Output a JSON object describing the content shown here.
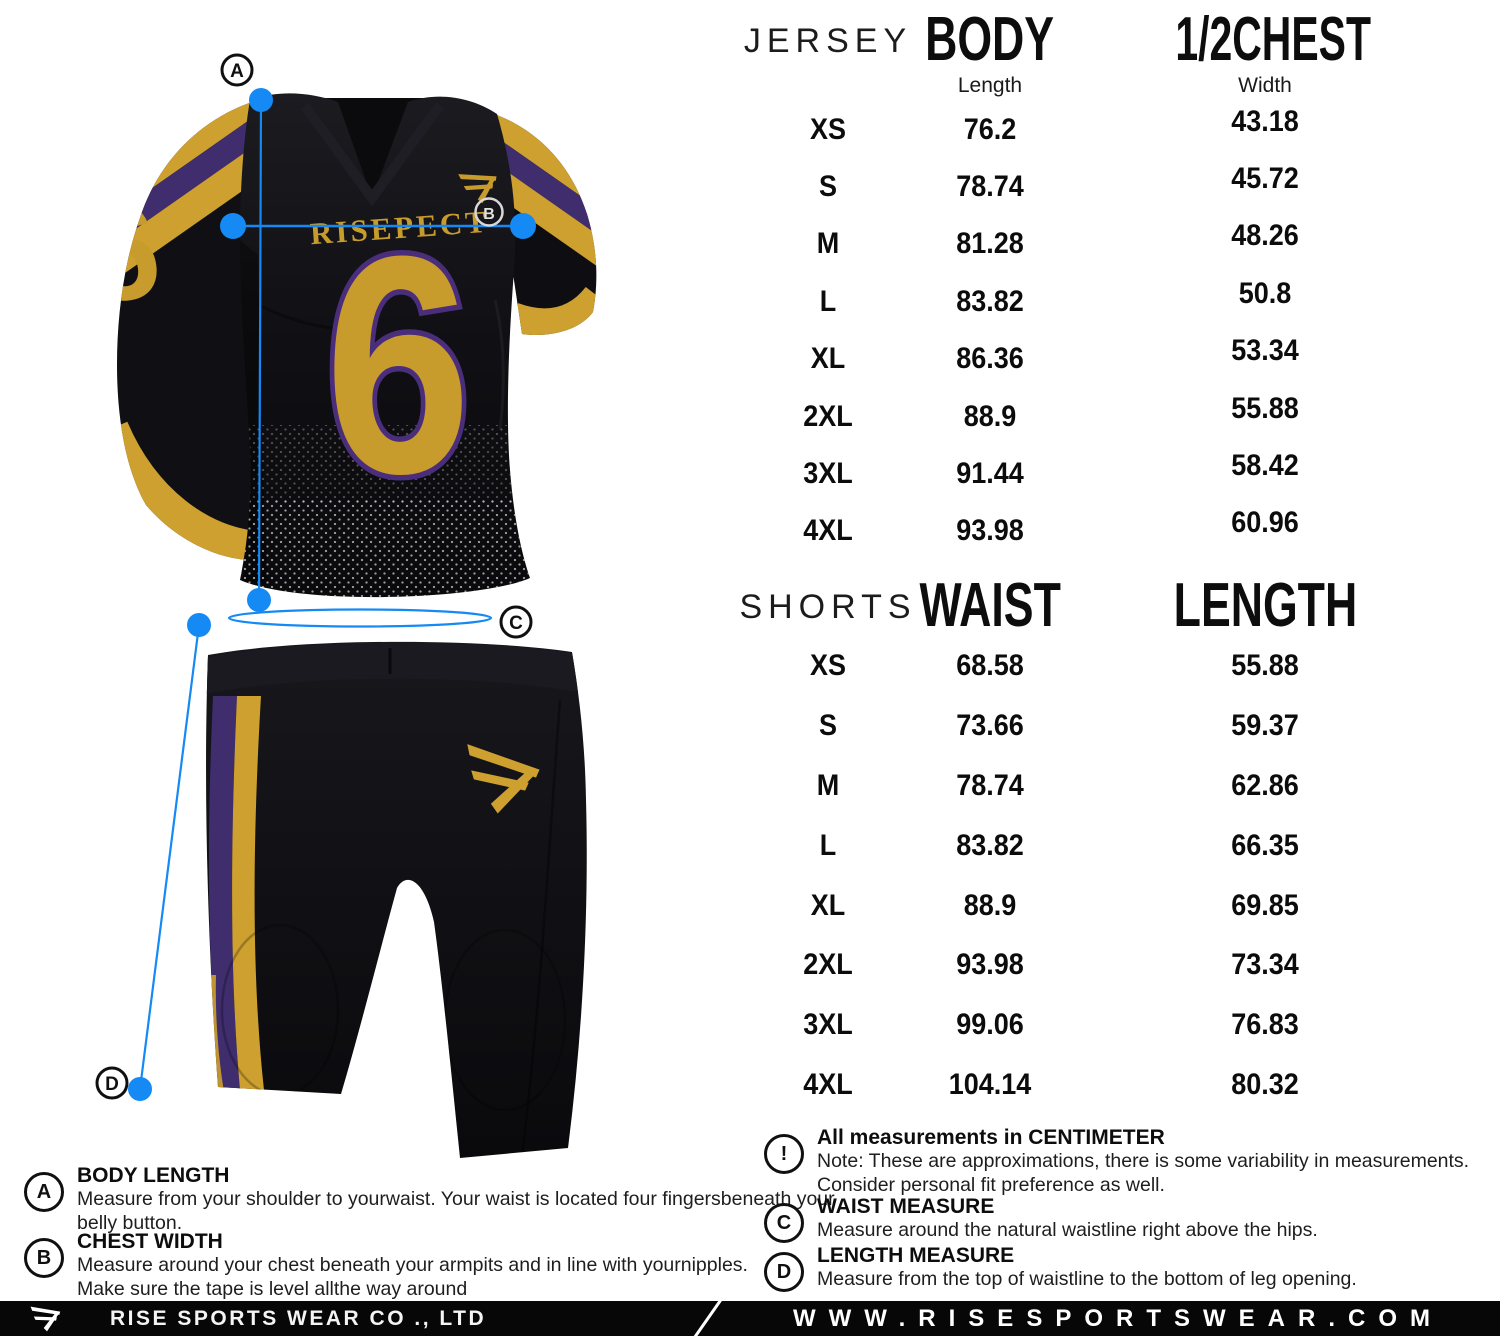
{
  "diagram_markers": {
    "a": "A",
    "b": "B",
    "c": "C",
    "d": "D"
  },
  "jersey_graphic": {
    "team_name": "RISEPECT",
    "number": "6",
    "sleeve_number": "6"
  },
  "jersey_table": {
    "product_label": "JERSEY",
    "col1_title": "BODY",
    "col1_subtitle": "Length",
    "col2_title": "1/2CHEST",
    "col2_subtitle": "Width",
    "rows": [
      [
        "XS",
        "76.2",
        "43.18"
      ],
      [
        "S",
        "78.74",
        "45.72"
      ],
      [
        "M",
        "81.28",
        "48.26"
      ],
      [
        "L",
        "83.82",
        "50.8"
      ],
      [
        "XL",
        "86.36",
        "53.34"
      ],
      [
        "2XL",
        "88.9",
        "55.88"
      ],
      [
        "3XL",
        "91.44",
        "58.42"
      ],
      [
        "4XL",
        "93.98",
        "60.96"
      ]
    ]
  },
  "shorts_table": {
    "product_label": "SHORTS",
    "col1_title": "WAIST",
    "col2_title": "LENGTH",
    "rows": [
      [
        "XS",
        "68.58",
        "55.88"
      ],
      [
        "S",
        "73.66",
        "59.37"
      ],
      [
        "M",
        "78.74",
        "62.86"
      ],
      [
        "L",
        "83.82",
        "66.35"
      ],
      [
        "XL",
        "88.9",
        "69.85"
      ],
      [
        "2XL",
        "93.98",
        "73.34"
      ],
      [
        "3XL",
        "99.06",
        "76.83"
      ],
      [
        "4XL",
        "104.14",
        "80.32"
      ]
    ]
  },
  "notes_left": [
    {
      "marker": "A",
      "title": "BODY LENGTH",
      "body_lines": [
        "Measure from your shoulder to yourwaist. Your waist is located four fingersbeneath your",
        "belly button."
      ]
    },
    {
      "marker": "B",
      "title": "CHEST WIDTH",
      "body_lines": [
        "Measure around your chest beneath your armpits and in line with yournipples.",
        "Make sure the tape is level allthe way around"
      ]
    }
  ],
  "notes_right": [
    {
      "marker": "!",
      "title": "All measurements in CENTIMETER",
      "body_lines": [
        "Note: These are approximations, there is some variability in measurements.",
        "Consider personal fit preference as well."
      ]
    },
    {
      "marker": "C",
      "title": "WAIST MEASURE",
      "body_lines": [
        "Measure around the natural waistline right above the hips."
      ]
    },
    {
      "marker": "D",
      "title": "LENGTH MEASURE",
      "body_lines": [
        "Measure from the top of waistline to the bottom of leg opening."
      ]
    }
  ],
  "footer": {
    "company": "RISE SPORTS WEAR CO ., LTD",
    "website": "WWW.RISESPORTSWEAR.COM"
  },
  "colors": {
    "accent_blue": "#1589f4",
    "gold": "#cda02f",
    "purple": "#3f2d6e",
    "jersey_black": "#0e0e12"
  }
}
